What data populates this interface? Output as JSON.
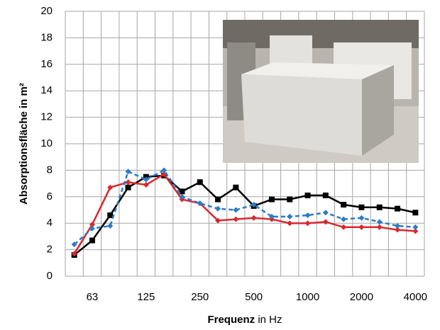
{
  "chart_data": {
    "type": "line",
    "y_label": "Absorptionsfläche in m²",
    "x_label_parts": [
      "Frequenz",
      "in Hz"
    ],
    "categories": [
      null,
      "63",
      null,
      null,
      "125",
      null,
      null,
      "250",
      null,
      null,
      "500",
      null,
      null,
      "1000",
      null,
      null,
      "2000",
      null,
      null,
      "4000"
    ],
    "series": [
      {
        "color": "#000000",
        "linestyle": "solid",
        "marker": "square",
        "values": [
          1.6,
          2.7,
          4.6,
          6.7,
          7.5,
          7.6,
          6.4,
          7.1,
          5.8,
          6.7,
          5.3,
          5.8,
          5.8,
          6.1,
          6.1,
          5.4,
          5.2,
          5.2,
          5.1,
          4.8
        ]
      },
      {
        "color": "#d9282f",
        "linestyle": "solid",
        "marker": "diamond",
        "values": [
          1.7,
          3.9,
          6.7,
          7.1,
          6.9,
          7.7,
          5.8,
          5.5,
          4.2,
          4.3,
          4.4,
          4.3,
          4.0,
          4.0,
          4.1,
          3.7,
          3.7,
          3.7,
          3.5,
          3.4
        ]
      },
      {
        "color": "#2e7bc4",
        "linestyle": "dashed",
        "marker": "diamond",
        "values": [
          2.4,
          3.6,
          3.8,
          7.9,
          7.3,
          8.0,
          6.0,
          5.5,
          5.1,
          5.0,
          5.4,
          4.5,
          4.5,
          4.6,
          4.8,
          4.3,
          4.4,
          4.1,
          3.8,
          3.7
        ]
      }
    ],
    "ylim": [
      0,
      20
    ],
    "yticks": [
      0,
      2,
      4,
      6,
      8,
      10,
      12,
      14,
      16,
      18,
      20
    ],
    "grid": true
  }
}
